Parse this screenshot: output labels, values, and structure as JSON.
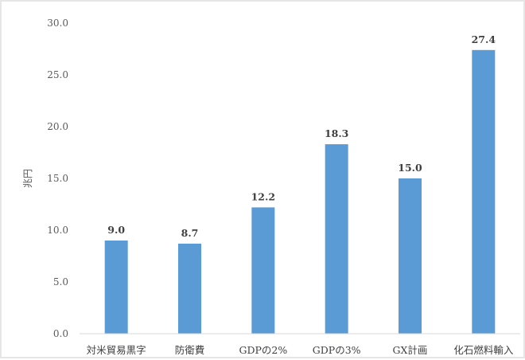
{
  "chart_data": {
    "type": "bar",
    "title": "",
    "xlabel": "",
    "ylabel": "兆円",
    "ylim": [
      0,
      30
    ],
    "yticks": [
      "0.0",
      "5.0",
      "10.0",
      "15.0",
      "20.0",
      "25.0",
      "30.0"
    ],
    "ytick_values": [
      0,
      5,
      10,
      15,
      20,
      25,
      30
    ],
    "categories": [
      "対米貿易黒字",
      "防衛費",
      "GDPの2%",
      "GDPの3%",
      "GX計画",
      "化石燃料輸入"
    ],
    "values": [
      9.0,
      8.7,
      12.2,
      18.3,
      15.0,
      27.4
    ],
    "data_labels": [
      "9.0",
      "8.7",
      "12.2",
      "18.3",
      "15.0",
      "27.4"
    ],
    "bar_color": "#5b9bd5",
    "grid": false,
    "legend": "none"
  }
}
